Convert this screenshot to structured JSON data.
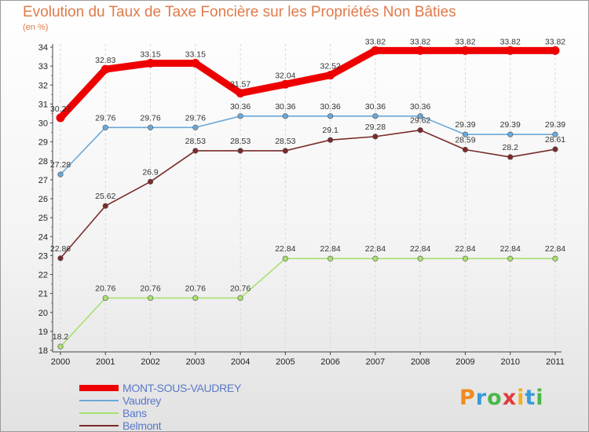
{
  "chart_data": {
    "type": "line",
    "title": "Evolution du Taux de Taxe Foncière sur les Propriétés Non Bâties",
    "subtitle": "(en %)",
    "x": [
      "2000",
      "2001",
      "2002",
      "2003",
      "2004",
      "2005",
      "2006",
      "2007",
      "2008",
      "2009",
      "2010",
      "2011"
    ],
    "ylim": [
      18,
      34
    ],
    "yticks": [
      18,
      19,
      20,
      21,
      22,
      23,
      24,
      25,
      26,
      27,
      28,
      29,
      30,
      31,
      32,
      33,
      34
    ],
    "grid": "vertical dashed",
    "legend_position": "bottom-left",
    "series": [
      {
        "name": "MONT-SOUS-VAUDREY",
        "color": "#ee0000",
        "values": [
          30.27,
          32.83,
          33.15,
          33.15,
          31.57,
          32.04,
          32.52,
          33.82,
          33.82,
          33.82,
          33.82,
          33.82
        ],
        "labels": [
          "30.27",
          "32.83",
          "33.15",
          "33.15",
          "31.57",
          "32.04",
          "32.52",
          "33.82",
          "33.82",
          "33.82",
          "33.82",
          "33.82"
        ]
      },
      {
        "name": "Vaudrey",
        "color": "#6aa8d8",
        "values": [
          27.28,
          29.76,
          29.76,
          29.76,
          30.36,
          30.36,
          30.36,
          30.36,
          30.36,
          29.39,
          29.39,
          29.39
        ],
        "labels": [
          "27.28",
          "29.76",
          "29.76",
          "29.76",
          "30.36",
          "30.36",
          "30.36",
          "30.36",
          "30.36",
          "29.39",
          "29.39",
          "29.39"
        ]
      },
      {
        "name": "Bans",
        "color": "#a8e070",
        "values": [
          18.2,
          20.76,
          20.76,
          20.76,
          20.76,
          22.84,
          22.84,
          22.84,
          22.84,
          22.84,
          22.84,
          22.84
        ],
        "labels": [
          "18.2",
          "20.76",
          "20.76",
          "20.76",
          "20.76",
          "22.84",
          "22.84",
          "22.84",
          "22.84",
          "22.84",
          "22.84",
          "22.84"
        ]
      },
      {
        "name": "Belmont",
        "color": "#7a2a2a",
        "values": [
          22.86,
          25.62,
          26.9,
          28.53,
          28.53,
          28.53,
          29.1,
          29.28,
          29.62,
          28.59,
          28.2,
          28.61
        ],
        "labels": [
          "22.86",
          "25.62",
          "26.9",
          "28.53",
          "28.53",
          "28.53",
          "29.1",
          "29.28",
          "29.62",
          "28.59",
          "28.2",
          "28.61"
        ]
      }
    ]
  },
  "brand": {
    "text": "Proxiti",
    "letters": [
      {
        "char": "P",
        "color": "#f08a1e"
      },
      {
        "char": "r",
        "color": "#3a9ad8"
      },
      {
        "char": "o",
        "color": "#4ab84a"
      },
      {
        "char": "x",
        "color": "#e03a3a"
      },
      {
        "char": "i",
        "color": "#f0b020"
      },
      {
        "char": "t",
        "color": "#3a9ad8"
      },
      {
        "char": "i",
        "color": "#4ab84a"
      }
    ]
  }
}
